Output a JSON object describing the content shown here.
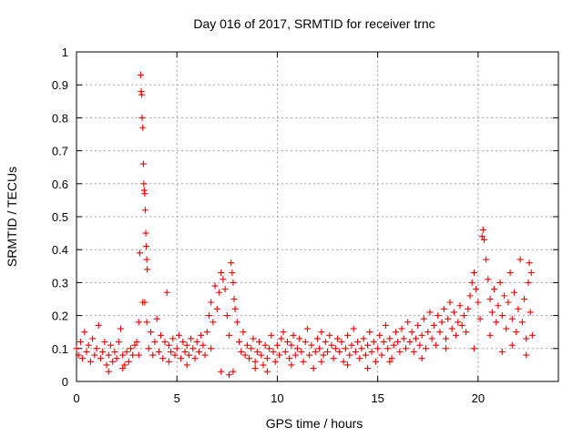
{
  "chart_data": {
    "type": "scatter",
    "title": "Day 016 of 2017, SRMTID for receiver trnc",
    "xlabel": "GPS time / hours",
    "ylabel": "SRMTID / TECUs",
    "xlim": [
      0,
      24
    ],
    "ylim": [
      0,
      1
    ],
    "xticks": [
      0,
      5,
      10,
      15,
      20
    ],
    "xtick_labels": [
      "0",
      "5",
      "10",
      "15",
      "20"
    ],
    "yticks": [
      0,
      0.1,
      0.2,
      0.3,
      0.4,
      0.5,
      0.6,
      0.7,
      0.8,
      0.9,
      1
    ],
    "ytick_labels": [
      "0",
      "0.1",
      "0.2",
      "0.3",
      "0.4",
      "0.5",
      "0.6",
      "0.7",
      "0.8",
      "0.9",
      "1"
    ],
    "grid": true,
    "marker": "+",
    "color": "#ee0000",
    "series": [
      {
        "name": "SRMTID",
        "points": [
          [
            0.0,
            0.1
          ],
          [
            0.1,
            0.08
          ],
          [
            0.2,
            0.12
          ],
          [
            0.3,
            0.07
          ],
          [
            0.4,
            0.15
          ],
          [
            0.5,
            0.09
          ],
          [
            0.6,
            0.11
          ],
          [
            0.7,
            0.06
          ],
          [
            0.8,
            0.13
          ],
          [
            0.9,
            0.08
          ],
          [
            1.0,
            0.1
          ],
          [
            1.1,
            0.17
          ],
          [
            1.2,
            0.07
          ],
          [
            1.3,
            0.09
          ],
          [
            1.4,
            0.12
          ],
          [
            1.5,
            0.05
          ],
          [
            1.6,
            0.08
          ],
          [
            1.7,
            0.11
          ],
          [
            1.8,
            0.06
          ],
          [
            1.9,
            0.09
          ],
          [
            2.0,
            0.07
          ],
          [
            2.1,
            0.12
          ],
          [
            2.2,
            0.16
          ],
          [
            2.3,
            0.08
          ],
          [
            2.4,
            0.05
          ],
          [
            2.5,
            0.09
          ],
          [
            2.6,
            0.06
          ],
          [
            2.7,
            0.1
          ],
          [
            2.8,
            0.08
          ],
          [
            2.9,
            0.11
          ],
          [
            3.0,
            0.12
          ],
          [
            3.1,
            0.18
          ],
          [
            3.15,
            0.39
          ],
          [
            3.2,
            0.93
          ],
          [
            3.22,
            0.88
          ],
          [
            3.25,
            0.87
          ],
          [
            3.27,
            0.8
          ],
          [
            3.3,
            0.77
          ],
          [
            3.33,
            0.66
          ],
          [
            3.35,
            0.6
          ],
          [
            3.37,
            0.58
          ],
          [
            3.4,
            0.57
          ],
          [
            3.42,
            0.52
          ],
          [
            3.45,
            0.45
          ],
          [
            3.47,
            0.41
          ],
          [
            3.5,
            0.37
          ],
          [
            3.52,
            0.34
          ],
          [
            3.3,
            0.24
          ],
          [
            3.4,
            0.24
          ],
          [
            3.5,
            0.18
          ],
          [
            3.6,
            0.1
          ],
          [
            3.7,
            0.15
          ],
          [
            3.8,
            0.08
          ],
          [
            3.9,
            0.12
          ],
          [
            4.0,
            0.19
          ],
          [
            4.1,
            0.09
          ],
          [
            4.2,
            0.14
          ],
          [
            4.3,
            0.07
          ],
          [
            4.4,
            0.12
          ],
          [
            4.5,
            0.27
          ],
          [
            4.6,
            0.11
          ],
          [
            4.7,
            0.09
          ],
          [
            4.8,
            0.13
          ],
          [
            4.9,
            0.08
          ],
          [
            5.0,
            0.1
          ],
          [
            5.1,
            0.14
          ],
          [
            5.2,
            0.07
          ],
          [
            5.3,
            0.12
          ],
          [
            5.4,
            0.09
          ],
          [
            5.5,
            0.11
          ],
          [
            5.6,
            0.08
          ],
          [
            5.7,
            0.13
          ],
          [
            5.8,
            0.1
          ],
          [
            5.9,
            0.07
          ],
          [
            6.0,
            0.12
          ],
          [
            6.1,
            0.09
          ],
          [
            6.2,
            0.14
          ],
          [
            6.3,
            0.11
          ],
          [
            6.4,
            0.08
          ],
          [
            6.5,
            0.15
          ],
          [
            6.6,
            0.2
          ],
          [
            6.7,
            0.24
          ],
          [
            6.8,
            0.18
          ],
          [
            6.9,
            0.29
          ],
          [
            7.0,
            0.22
          ],
          [
            7.1,
            0.27
          ],
          [
            7.2,
            0.33
          ],
          [
            7.3,
            0.31
          ],
          [
            7.4,
            0.28
          ],
          [
            7.5,
            0.2
          ],
          [
            7.6,
            0.14
          ],
          [
            7.7,
            0.36
          ],
          [
            7.75,
            0.33
          ],
          [
            7.8,
            0.3
          ],
          [
            7.85,
            0.25
          ],
          [
            7.9,
            0.22
          ],
          [
            8.0,
            0.18
          ],
          [
            8.1,
            0.12
          ],
          [
            8.2,
            0.09
          ],
          [
            8.3,
            0.15
          ],
          [
            7.2,
            0.03
          ],
          [
            7.6,
            0.02
          ],
          [
            7.8,
            0.03
          ],
          [
            8.4,
            0.08
          ],
          [
            8.5,
            0.11
          ],
          [
            8.6,
            0.07
          ],
          [
            8.7,
            0.1
          ],
          [
            8.8,
            0.13
          ],
          [
            8.9,
            0.06
          ],
          [
            9.0,
            0.09
          ],
          [
            9.1,
            0.12
          ],
          [
            9.2,
            0.08
          ],
          [
            9.3,
            0.05
          ],
          [
            9.4,
            0.11
          ],
          [
            9.5,
            0.07
          ],
          [
            9.6,
            0.1
          ],
          [
            9.7,
            0.14
          ],
          [
            9.8,
            0.09
          ],
          [
            9.9,
            0.06
          ],
          [
            10.0,
            0.11
          ],
          [
            10.1,
            0.08
          ],
          [
            10.2,
            0.13
          ],
          [
            10.3,
            0.15
          ],
          [
            10.4,
            0.09
          ],
          [
            10.5,
            0.12
          ],
          [
            10.6,
            0.07
          ],
          [
            10.7,
            0.11
          ],
          [
            10.8,
            0.14
          ],
          [
            10.9,
            0.08
          ],
          [
            11.0,
            0.1
          ],
          [
            11.1,
            0.13
          ],
          [
            11.2,
            0.09
          ],
          [
            11.3,
            0.06
          ],
          [
            11.4,
            0.12
          ],
          [
            11.5,
            0.16
          ],
          [
            11.6,
            0.08
          ],
          [
            11.7,
            0.11
          ],
          [
            11.8,
            0.04
          ],
          [
            11.9,
            0.09
          ],
          [
            12.0,
            0.13
          ],
          [
            12.1,
            0.1
          ],
          [
            12.2,
            0.15
          ],
          [
            12.3,
            0.08
          ],
          [
            12.4,
            0.12
          ],
          [
            12.5,
            0.09
          ],
          [
            12.6,
            0.14
          ],
          [
            12.7,
            0.11
          ],
          [
            12.8,
            0.07
          ],
          [
            12.9,
            0.1
          ],
          [
            13.0,
            0.13
          ],
          [
            13.1,
            0.09
          ],
          [
            13.2,
            0.12
          ],
          [
            13.3,
            0.06
          ],
          [
            13.4,
            0.1
          ],
          [
            13.5,
            0.14
          ],
          [
            13.6,
            0.08
          ],
          [
            13.7,
            0.11
          ],
          [
            13.8,
            0.16
          ],
          [
            13.9,
            0.09
          ],
          [
            14.0,
            0.12
          ],
          [
            14.1,
            0.07
          ],
          [
            14.2,
            0.1
          ],
          [
            14.3,
            0.13
          ],
          [
            14.4,
            0.08
          ],
          [
            14.5,
            0.11
          ],
          [
            14.6,
            0.15
          ],
          [
            14.7,
            0.09
          ],
          [
            14.8,
            0.12
          ],
          [
            14.9,
            0.06
          ],
          [
            15.0,
            0.1
          ],
          [
            15.1,
            0.14
          ],
          [
            15.2,
            0.08
          ],
          [
            15.3,
            0.12
          ],
          [
            15.4,
            0.17
          ],
          [
            15.5,
            0.1
          ],
          [
            15.6,
            0.13
          ],
          [
            15.7,
            0.07
          ],
          [
            15.8,
            0.11
          ],
          [
            15.9,
            0.15
          ],
          [
            16.0,
            0.12
          ],
          [
            16.1,
            0.09
          ],
          [
            16.2,
            0.16
          ],
          [
            16.3,
            0.13
          ],
          [
            16.4,
            0.1
          ],
          [
            16.5,
            0.18
          ],
          [
            16.6,
            0.12
          ],
          [
            16.7,
            0.15
          ],
          [
            16.8,
            0.09
          ],
          [
            16.9,
            0.13
          ],
          [
            17.0,
            0.17
          ],
          [
            17.1,
            0.11
          ],
          [
            17.2,
            0.14
          ],
          [
            17.3,
            0.19
          ],
          [
            17.4,
            0.1
          ],
          [
            17.5,
            0.15
          ],
          [
            17.6,
            0.21
          ],
          [
            17.7,
            0.13
          ],
          [
            17.8,
            0.17
          ],
          [
            17.9,
            0.11
          ],
          [
            18.0,
            0.2
          ],
          [
            18.1,
            0.15
          ],
          [
            18.2,
            0.18
          ],
          [
            18.3,
            0.22
          ],
          [
            18.4,
            0.13
          ],
          [
            18.5,
            0.19
          ],
          [
            18.6,
            0.24
          ],
          [
            18.7,
            0.16
          ],
          [
            18.8,
            0.21
          ],
          [
            18.9,
            0.14
          ],
          [
            19.0,
            0.18
          ],
          [
            19.1,
            0.23
          ],
          [
            19.2,
            0.17
          ],
          [
            19.3,
            0.2
          ],
          [
            19.4,
            0.15
          ],
          [
            19.5,
            0.22
          ],
          [
            19.6,
            0.26
          ],
          [
            19.7,
            0.3
          ],
          [
            19.8,
            0.33
          ],
          [
            19.9,
            0.28
          ],
          [
            20.0,
            0.24
          ],
          [
            20.1,
            0.19
          ],
          [
            20.2,
            0.44
          ],
          [
            20.25,
            0.46
          ],
          [
            20.3,
            0.43
          ],
          [
            20.4,
            0.37
          ],
          [
            20.5,
            0.31
          ],
          [
            20.6,
            0.25
          ],
          [
            20.7,
            0.21
          ],
          [
            20.8,
            0.28
          ],
          [
            20.9,
            0.18
          ],
          [
            21.0,
            0.23
          ],
          [
            21.1,
            0.3
          ],
          [
            21.2,
            0.2
          ],
          [
            21.3,
            0.26
          ],
          [
            21.4,
            0.16
          ],
          [
            21.5,
            0.24
          ],
          [
            21.6,
            0.33
          ],
          [
            21.7,
            0.19
          ],
          [
            21.8,
            0.27
          ],
          [
            21.9,
            0.15
          ],
          [
            22.0,
            0.22
          ],
          [
            22.1,
            0.37
          ],
          [
            22.2,
            0.18
          ],
          [
            22.3,
            0.25
          ],
          [
            22.4,
            0.13
          ],
          [
            22.5,
            0.3
          ],
          [
            22.55,
            0.36
          ],
          [
            22.6,
            0.21
          ],
          [
            22.65,
            0.33
          ],
          [
            22.7,
            0.14
          ],
          [
            5.5,
            0.05
          ],
          [
            9.5,
            0.03
          ],
          [
            14.5,
            0.04
          ],
          [
            17.2,
            0.07
          ],
          [
            19.8,
            0.1
          ],
          [
            21.2,
            0.09
          ],
          [
            21.7,
            0.11
          ],
          [
            22.4,
            0.08
          ],
          [
            1.6,
            0.03
          ],
          [
            2.3,
            0.04
          ],
          [
            3.1,
            0.08
          ],
          [
            4.6,
            0.06
          ],
          [
            6.7,
            0.1
          ],
          [
            8.9,
            0.04
          ],
          [
            10.7,
            0.05
          ],
          [
            12.2,
            0.06
          ],
          [
            13.5,
            0.05
          ],
          [
            15.6,
            0.06
          ],
          [
            18.4,
            0.1
          ],
          [
            20.6,
            0.14
          ]
        ]
      }
    ]
  }
}
